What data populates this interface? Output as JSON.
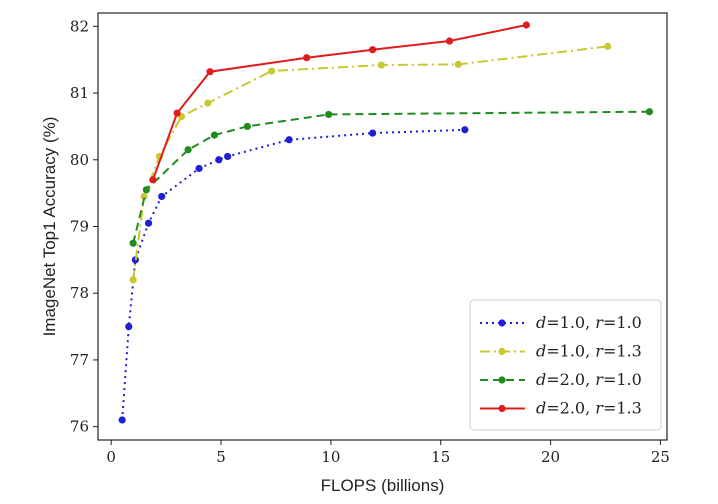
{
  "chart_data": {
    "type": "line",
    "title": "",
    "xlabel": "FLOPS (billions)",
    "ylabel": "ImageNet Top1 Accuracy (%)",
    "xlim": [
      -0.6,
      25.3
    ],
    "ylim": [
      75.8,
      82.2
    ],
    "xticks": [
      0,
      5,
      10,
      15,
      20,
      25
    ],
    "yticks": [
      76,
      77,
      78,
      79,
      80,
      81,
      82
    ],
    "grid": false,
    "legend_position": "bottom-right",
    "series": [
      {
        "name": "d=1.0, r=1.0",
        "legend_prefix1": "d",
        "legend_mid": "=1.0, ",
        "legend_prefix2": "r",
        "legend_suffix": "=1.0",
        "color": "#1f1fd6",
        "dash": "2 4",
        "points": [
          [
            0.5,
            76.1
          ],
          [
            0.8,
            77.5
          ],
          [
            1.1,
            78.5
          ],
          [
            1.7,
            79.05
          ],
          [
            2.3,
            79.45
          ],
          [
            4.0,
            79.87
          ],
          [
            4.9,
            80.0
          ],
          [
            5.3,
            80.05
          ],
          [
            8.1,
            80.3
          ],
          [
            11.9,
            80.4
          ],
          [
            16.1,
            80.45
          ]
        ]
      },
      {
        "name": "d=1.0, r=1.3",
        "legend_prefix1": "d",
        "legend_mid": "=1.0, ",
        "legend_prefix2": "r",
        "legend_suffix": "=1.3",
        "color": "#c8c832",
        "dash": "10 4 2 4",
        "points": [
          [
            1.0,
            78.2
          ],
          [
            1.5,
            79.45
          ],
          [
            2.2,
            80.05
          ],
          [
            3.2,
            80.65
          ],
          [
            4.4,
            80.85
          ],
          [
            7.3,
            81.33
          ],
          [
            12.3,
            81.42
          ],
          [
            15.8,
            81.43
          ],
          [
            22.6,
            81.7
          ]
        ]
      },
      {
        "name": "d=2.0, r=1.0",
        "legend_prefix1": "d",
        "legend_mid": "=2.0, ",
        "legend_prefix2": "r",
        "legend_suffix": "=1.0",
        "color": "#1f8c1f",
        "dash": "8 5",
        "points": [
          [
            1.0,
            78.75
          ],
          [
            1.6,
            79.55
          ],
          [
            3.5,
            80.15
          ],
          [
            4.7,
            80.37
          ],
          [
            6.2,
            80.5
          ],
          [
            9.9,
            80.68
          ],
          [
            24.5,
            80.72
          ]
        ]
      },
      {
        "name": "d=2.0, r=1.3",
        "legend_prefix1": "d",
        "legend_mid": "=2.0, ",
        "legend_prefix2": "r",
        "legend_suffix": "=1.3",
        "color": "#e01d1d",
        "dash": "",
        "points": [
          [
            1.9,
            79.7
          ],
          [
            3.0,
            80.7
          ],
          [
            4.5,
            81.32
          ],
          [
            8.9,
            81.53
          ],
          [
            11.9,
            81.65
          ],
          [
            15.4,
            81.78
          ],
          [
            18.9,
            82.02
          ]
        ]
      }
    ]
  }
}
